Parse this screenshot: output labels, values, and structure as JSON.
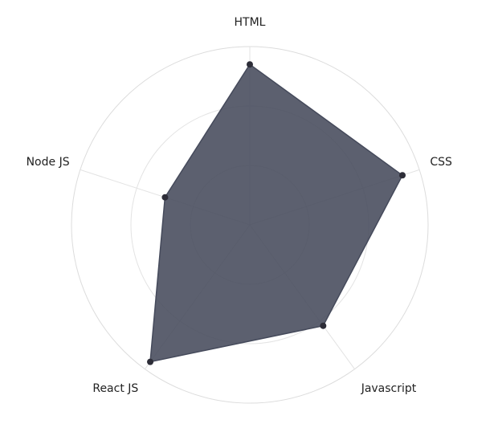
{
  "chart_data": {
    "type": "radar",
    "title": "",
    "categories": [
      "HTML",
      "CSS",
      "Javascript",
      "React JS",
      "Node JS"
    ],
    "series": [
      {
        "values": [
          90,
          90,
          70,
          95,
          50
        ]
      }
    ],
    "rlim": [
      0,
      100
    ],
    "grid": true,
    "legend": "none",
    "colors": {
      "fill": "#454a5b",
      "stroke": "#454a5b",
      "point": "#2d2d38",
      "grid": "#e3e3e3",
      "label": "#222222"
    }
  }
}
